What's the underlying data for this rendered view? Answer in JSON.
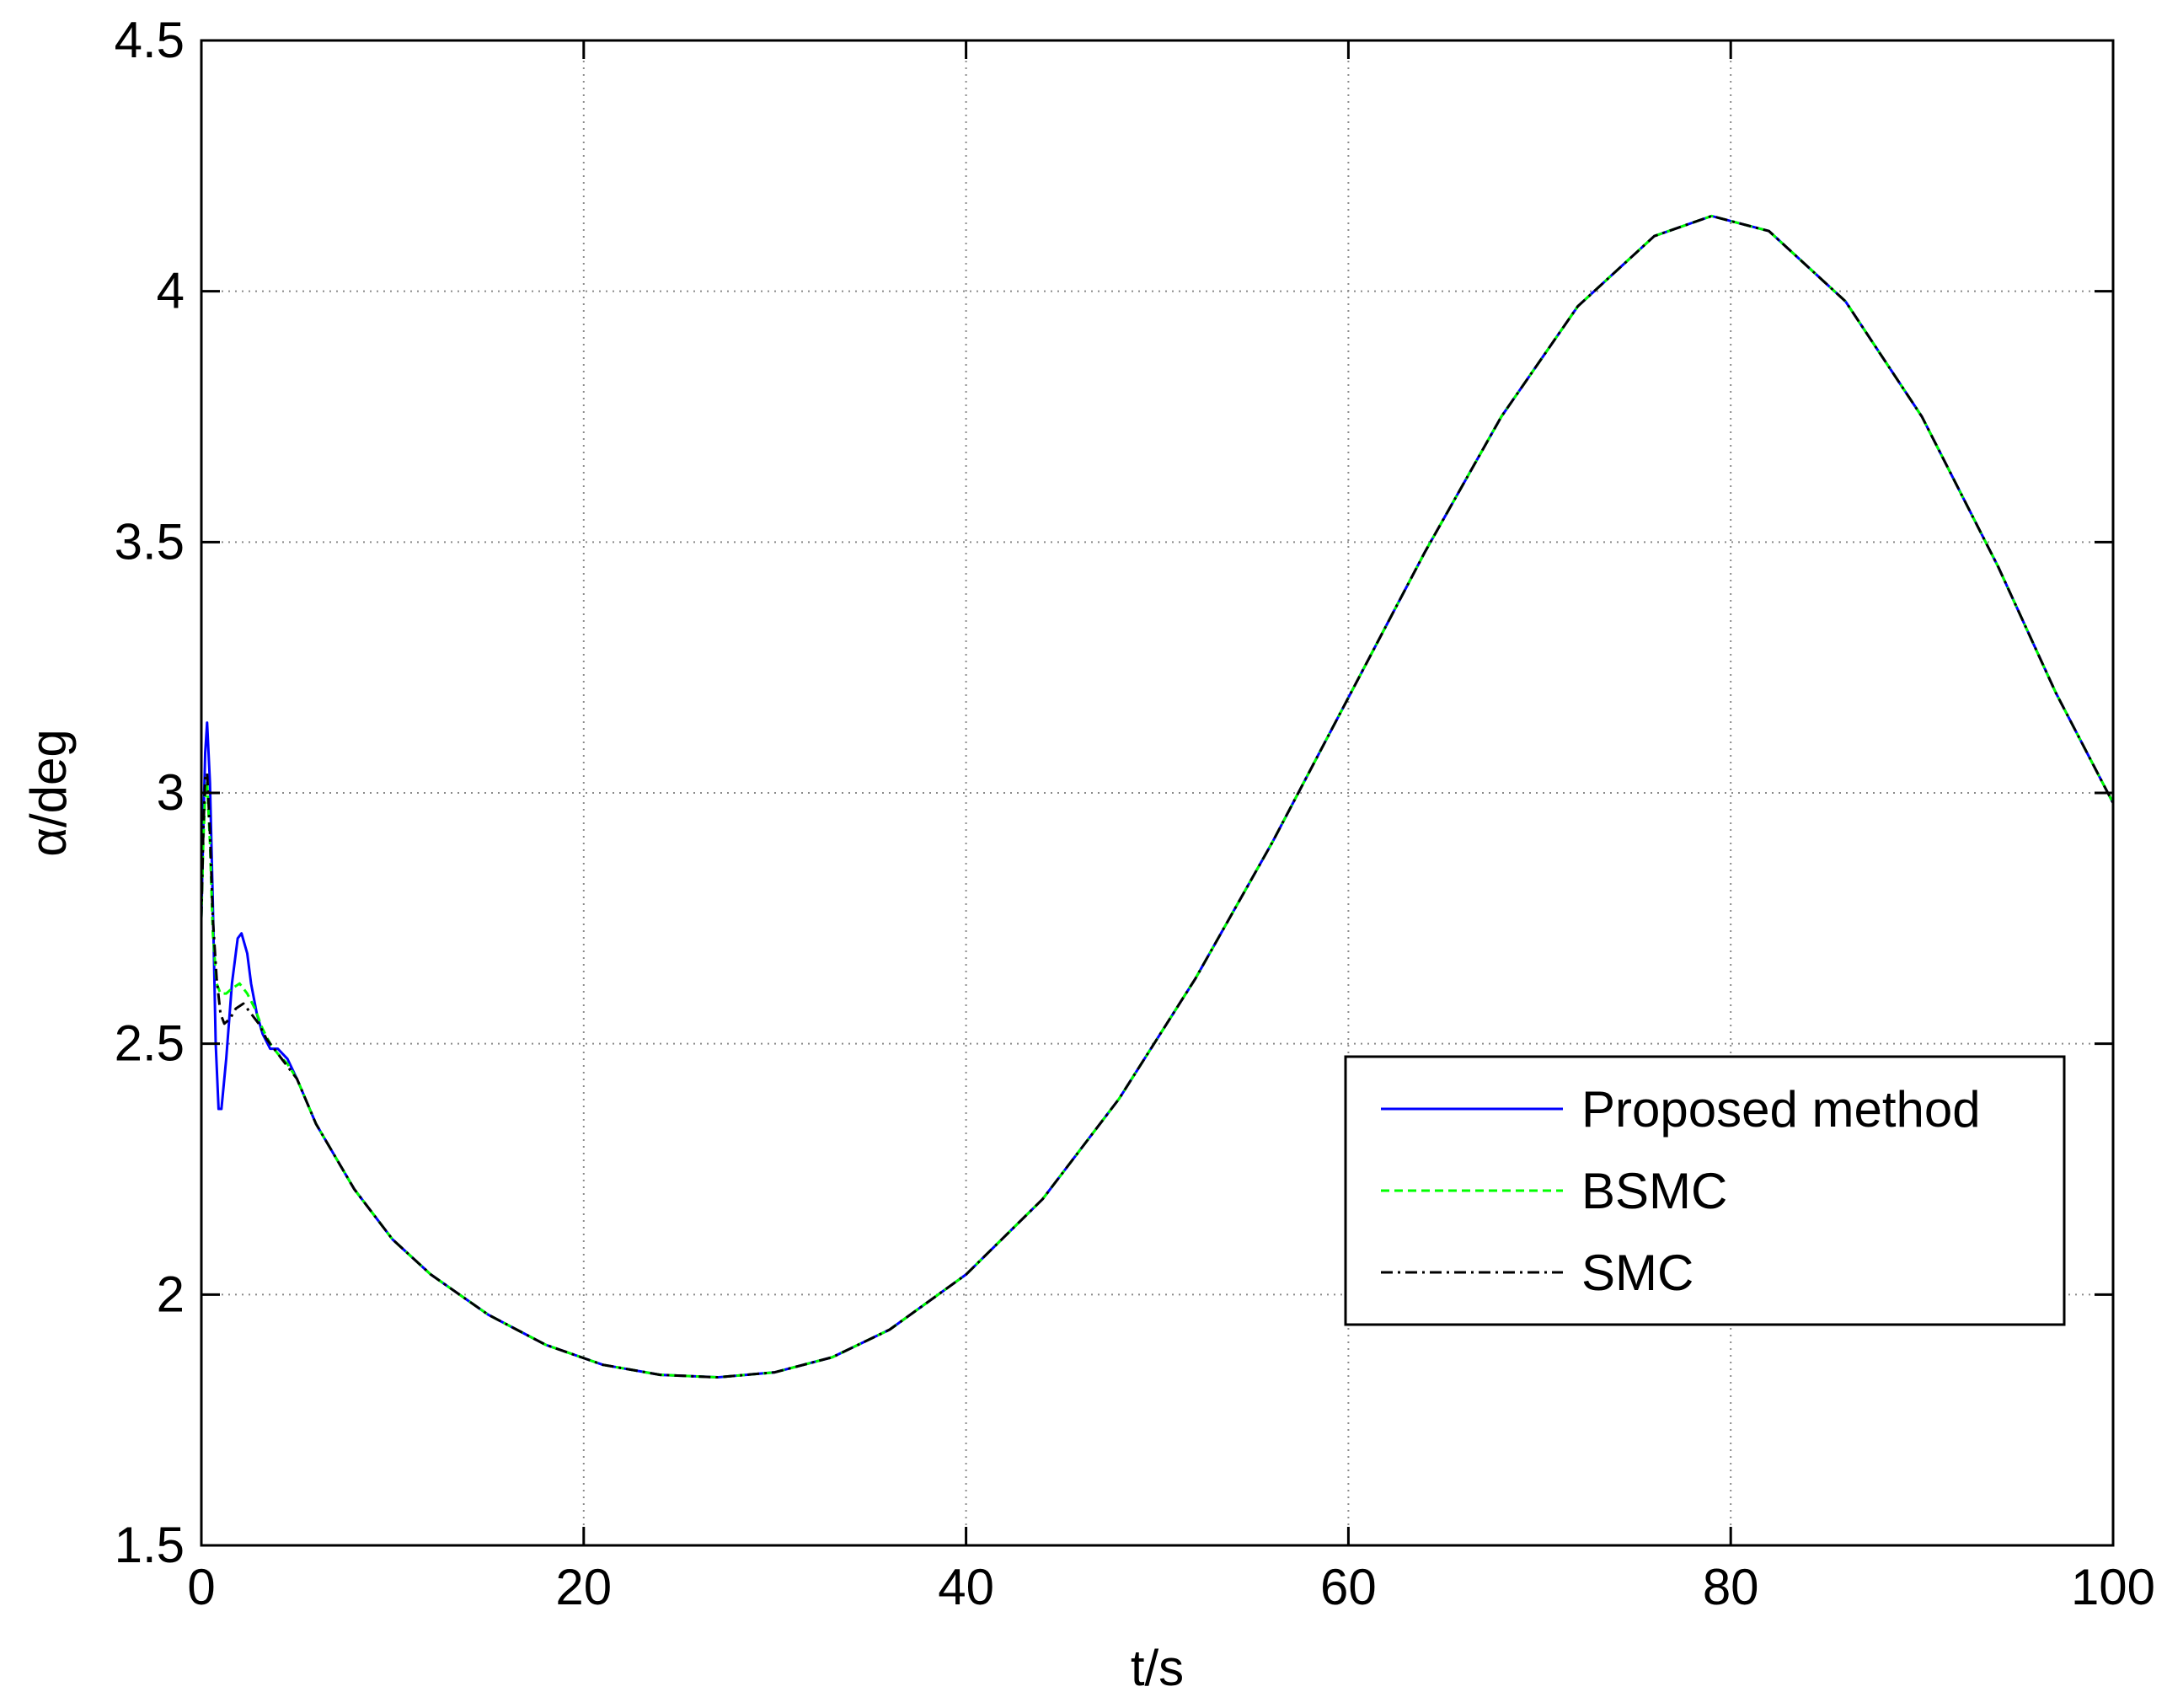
{
  "chart_data": {
    "type": "line",
    "title": "",
    "xlabel": "t/s",
    "ylabel": "α/deg",
    "xlim": [
      0,
      100
    ],
    "ylim": [
      1.5,
      4.5
    ],
    "xticks": [
      0,
      20,
      40,
      60,
      80,
      100
    ],
    "yticks": [
      1.5,
      2,
      2.5,
      3,
      3.5,
      4,
      4.5
    ],
    "xtick_labels": [
      "0",
      "20",
      "40",
      "60",
      "80",
      "100"
    ],
    "ytick_labels": [
      "1.5",
      "2",
      "2.5",
      "3",
      "3.5",
      "4",
      "4.5"
    ],
    "grid": true,
    "legend_position": "lower-right",
    "series": [
      {
        "name": "Proposed method",
        "color": "#0000ff",
        "style": "solid",
        "x": [
          0,
          0.1,
          0.2,
          0.3,
          0.45,
          0.6,
          0.75,
          0.9,
          1.05,
          1.3,
          1.6,
          1.9,
          2.1,
          2.4,
          2.6,
          2.9,
          3.2,
          3.6,
          4.0,
          4.5,
          5,
          6,
          8,
          10,
          12,
          15,
          18,
          21,
          24,
          27,
          30,
          33,
          36,
          40,
          44,
          48,
          52,
          56,
          60,
          64,
          68,
          72,
          76,
          79,
          82,
          86,
          90,
          94,
          97,
          100
        ],
        "y": [
          2.75,
          2.93,
          3.08,
          3.14,
          3.02,
          2.78,
          2.5,
          2.37,
          2.37,
          2.47,
          2.62,
          2.71,
          2.72,
          2.68,
          2.62,
          2.56,
          2.52,
          2.49,
          2.49,
          2.47,
          2.43,
          2.34,
          2.21,
          2.11,
          2.04,
          1.96,
          1.9,
          1.86,
          1.84,
          1.835,
          1.845,
          1.875,
          1.93,
          2.04,
          2.19,
          2.39,
          2.63,
          2.9,
          3.19,
          3.48,
          3.75,
          3.97,
          4.11,
          4.15,
          4.12,
          3.98,
          3.75,
          3.45,
          3.2,
          2.98
        ]
      },
      {
        "name": "BSMC",
        "color": "#00ff00",
        "style": "dashed",
        "x": [
          0,
          0.1,
          0.2,
          0.3,
          0.45,
          0.6,
          0.8,
          1.0,
          1.3,
          1.6,
          2.0,
          2.4,
          2.8,
          3.2,
          3.6,
          4.0,
          4.5,
          5,
          6,
          8,
          10,
          12,
          15,
          18,
          21,
          24,
          27,
          30,
          33,
          36,
          40,
          44,
          48,
          52,
          56,
          60,
          64,
          68,
          72,
          76,
          79,
          82,
          86,
          90,
          94,
          97,
          100
        ],
        "y": [
          2.75,
          2.9,
          3.0,
          3.02,
          2.9,
          2.72,
          2.62,
          2.6,
          2.6,
          2.61,
          2.62,
          2.6,
          2.57,
          2.53,
          2.5,
          2.48,
          2.46,
          2.43,
          2.34,
          2.21,
          2.11,
          2.04,
          1.96,
          1.9,
          1.86,
          1.84,
          1.835,
          1.845,
          1.875,
          1.93,
          2.04,
          2.19,
          2.39,
          2.63,
          2.9,
          3.19,
          3.48,
          3.75,
          3.97,
          4.11,
          4.15,
          4.12,
          3.98,
          3.75,
          3.45,
          3.2,
          2.98
        ]
      },
      {
        "name": "SMC",
        "color": "#000000",
        "style": "dashdot",
        "x": [
          0,
          0.1,
          0.2,
          0.3,
          0.45,
          0.6,
          0.8,
          1.0,
          1.2,
          1.5,
          1.8,
          2.2,
          2.6,
          3.0,
          3.4,
          3.8,
          4.2,
          4.6,
          5,
          6,
          8,
          10,
          12,
          15,
          18,
          21,
          24,
          27,
          30,
          33,
          36,
          40,
          44,
          48,
          52,
          56,
          60,
          64,
          68,
          72,
          76,
          79,
          82,
          86,
          90,
          94,
          97,
          100
        ],
        "y": [
          2.75,
          2.92,
          3.03,
          3.04,
          2.92,
          2.75,
          2.63,
          2.56,
          2.54,
          2.55,
          2.57,
          2.58,
          2.56,
          2.54,
          2.51,
          2.49,
          2.47,
          2.45,
          2.43,
          2.34,
          2.21,
          2.11,
          2.04,
          1.96,
          1.9,
          1.86,
          1.84,
          1.835,
          1.845,
          1.875,
          1.93,
          2.04,
          2.19,
          2.39,
          2.63,
          2.9,
          3.19,
          3.48,
          3.75,
          3.97,
          4.11,
          4.15,
          4.12,
          3.98,
          3.75,
          3.45,
          3.2,
          2.98
        ]
      }
    ]
  }
}
